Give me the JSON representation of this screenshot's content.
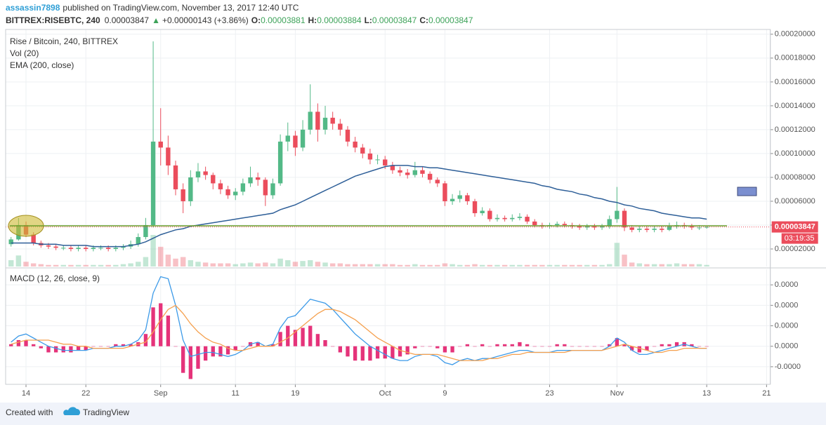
{
  "header": {
    "user": "assassin7898",
    "published": "published on TradingView.com, November 13, 2017 12:40 UTC",
    "symbol": "BITTREX:RISEBTC, 240",
    "price": "0.00003847",
    "arrow": "▲",
    "change": "+0.00000143 (+3.86%)",
    "o_label": "O:",
    "o": "0.00003881",
    "h_label": "H:",
    "h": "0.00003884",
    "l_label": "L:",
    "l": "0.00003847",
    "c_label": "C:",
    "c": "0.00003847"
  },
  "footer": {
    "created": "Created with",
    "brand": "TradingView"
  },
  "chart_data": {
    "type": "candlestick",
    "title": "Rise / Bitcoin, 240, BITTREX",
    "categories": [
      null,
      null,
      "14",
      null,
      null,
      null,
      null,
      null,
      null,
      null,
      "22",
      null,
      null,
      null,
      null,
      null,
      null,
      null,
      null,
      null,
      "Sep",
      null,
      null,
      null,
      null,
      null,
      null,
      null,
      null,
      null,
      "11",
      null,
      null,
      null,
      null,
      null,
      null,
      null,
      "19",
      null,
      null,
      null,
      null,
      null,
      null,
      null,
      null,
      null,
      null,
      null,
      "Oct",
      null,
      null,
      null,
      null,
      null,
      null,
      null,
      "9",
      null,
      null,
      null,
      null,
      null,
      null,
      null,
      null,
      null,
      null,
      null,
      null,
      null,
      "23",
      null,
      null,
      null,
      null,
      null,
      null,
      null,
      null,
      "Nov",
      null,
      null,
      null,
      null,
      null,
      null,
      null,
      null,
      null,
      null,
      null,
      "13",
      null,
      null,
      null,
      null,
      null,
      null,
      null,
      "21"
    ],
    "open": [
      2.4e-05,
      2.8e-05,
      4e-05,
      3.2e-05,
      2.5e-05,
      2.3e-05,
      2.2e-05,
      2.1e-05,
      2.1e-05,
      2e-05,
      2.1e-05,
      2e-05,
      2.1e-05,
      2.1e-05,
      2e-05,
      2.1e-05,
      2.2e-05,
      2.4e-05,
      3e-05,
      4e-05,
      0.00011,
      0.000105,
      9e-05,
      7e-05,
      6e-05,
      8e-05,
      8.5e-05,
      8.2e-05,
      7.5e-05,
      7e-05,
      6.5e-05,
      6.8e-05,
      7.5e-05,
      8e-05,
      7.8e-05,
      6.5e-05,
      7.5e-05,
      0.00011,
      0.000115,
      0.000105,
      0.00012,
      0.000135,
      0.00012,
      0.00013,
      0.000125,
      0.00012,
      0.00011,
      0.000105,
      0.0001,
      9.5e-05,
      9.5e-05,
      9e-05,
      8.6e-05,
      8.4e-05,
      8.2e-05,
      8.6e-05,
      8.3e-05,
      7.8e-05,
      7.5e-05,
      6e-05,
      6.2e-05,
      6.5e-05,
      6e-05,
      5e-05,
      5.2e-05,
      4.5e-05,
      4.6e-05,
      4.5e-05,
      4.6e-05,
      4.7e-05,
      4.3e-05,
      4e-05,
      3.9e-05,
      4e-05,
      4.1e-05,
      4e-05,
      3.9e-05,
      3.8e-05,
      3.9e-05,
      3.8e-05,
      3.9e-05,
      4.5e-05,
      5.2e-05,
      3.8e-05,
      3.6e-05,
      3.7e-05,
      3.6e-05,
      3.7e-05,
      3.6e-05,
      3.9e-05,
      4e-05,
      3.9e-05,
      3.8e-05,
      3.8e-05,
      null,
      null,
      null,
      null,
      null,
      null,
      null,
      null
    ],
    "high": [
      3e-05,
      4.6e-05,
      4.3e-05,
      3.4e-05,
      2.7e-05,
      2.5e-05,
      2.4e-05,
      2.3e-05,
      2.3e-05,
      2.3e-05,
      2.3e-05,
      2.3e-05,
      2.3e-05,
      2.3e-05,
      2.3e-05,
      2.4e-05,
      2.7e-05,
      3.3e-05,
      4.6e-05,
      0.000194,
      0.000138,
      0.000115,
      9.4e-05,
      7.5e-05,
      8.6e-05,
      9.2e-05,
      8.9e-05,
      8.4e-05,
      7.8e-05,
      7.3e-05,
      7.1e-05,
      7.9e-05,
      8.9e-05,
      8.4e-05,
      8e-05,
      7.9e-05,
      0.000116,
      0.000126,
      0.000119,
      0.000128,
      0.000158,
      0.000142,
      0.00014,
      0.000135,
      0.000129,
      0.000123,
      0.000114,
      0.000108,
      0.000104,
      9.9e-05,
      9.8e-05,
      9.3e-05,
      8.9e-05,
      8.7e-05,
      9.3e-05,
      8.9e-05,
      8.5e-05,
      8e-05,
      7.7e-05,
      6.6e-05,
      6.9e-05,
      6.7e-05,
      6.2e-05,
      5.5e-05,
      5.4e-05,
      4.9e-05,
      4.8e-05,
      4.9e-05,
      5e-05,
      4.9e-05,
      4.5e-05,
      4.2e-05,
      4.2e-05,
      4.3e-05,
      4.3e-05,
      4.2e-05,
      4.1e-05,
      4.1e-05,
      4.1e-05,
      4.1e-05,
      4.8e-05,
      7.2e-05,
      5.4e-05,
      4e-05,
      3.9e-05,
      3.9e-05,
      3.9e-05,
      3.9e-05,
      4.2e-05,
      4.3e-05,
      4.2e-05,
      4.1e-05,
      4e-05,
      3.9e-05,
      null,
      null,
      null,
      null,
      null,
      null,
      null,
      null
    ],
    "low": [
      2.2e-05,
      2.7e-05,
      3e-05,
      2.3e-05,
      2.1e-05,
      2e-05,
      1.9e-05,
      1.9e-05,
      1.8e-05,
      1.8e-05,
      1.8e-05,
      1.8e-05,
      1.9e-05,
      1.8e-05,
      1.8e-05,
      1.9e-05,
      2e-05,
      2.2e-05,
      2.8e-05,
      3.8e-05,
      9e-05,
      8.2e-05,
      6.5e-05,
      5e-05,
      5.6e-05,
      7.6e-05,
      7.8e-05,
      7e-05,
      6.6e-05,
      6.2e-05,
      6.1e-05,
      6.5e-05,
      7.2e-05,
      7.3e-05,
      5.6e-05,
      6.2e-05,
      7.3e-05,
      0.000102,
      9.8e-05,
      0.000102,
      0.000116,
      0.00011,
      0.000116,
      0.00012,
      0.000115,
      0.000106,
      0.000101,
      9.6e-05,
      9.1e-05,
      9.1e-05,
      8.7e-05,
      8.3e-05,
      8.1e-05,
      7.9e-05,
      8e-05,
      8e-05,
      7.5e-05,
      7.2e-05,
      5.6e-05,
      5.7e-05,
      5.9e-05,
      5.7e-05,
      4.7e-05,
      4.8e-05,
      4.3e-05,
      4.3e-05,
      4.3e-05,
      4.3e-05,
      4.4e-05,
      4.1e-05,
      3.8e-05,
      3.7e-05,
      3.7e-05,
      3.8e-05,
      3.8e-05,
      3.7e-05,
      3.6e-05,
      3.6e-05,
      3.6e-05,
      3.6e-05,
      3.7e-05,
      4.2e-05,
      3.5e-05,
      3.4e-05,
      3.4e-05,
      3.4e-05,
      3.4e-05,
      3.4e-05,
      3.5e-05,
      3.7e-05,
      3.7e-05,
      3.6e-05,
      3.6e-05,
      3.7e-05,
      null,
      null,
      null,
      null,
      null,
      null,
      null,
      null
    ],
    "close": [
      2.8e-05,
      4e-05,
      3.2e-05,
      2.5e-05,
      2.3e-05,
      2.2e-05,
      2.1e-05,
      2.1e-05,
      2e-05,
      2.1e-05,
      2e-05,
      2.1e-05,
      2.1e-05,
      2e-05,
      2.1e-05,
      2.2e-05,
      2.4e-05,
      3e-05,
      4e-05,
      0.00011,
      0.000105,
      9e-05,
      7e-05,
      6e-05,
      8e-05,
      8.5e-05,
      8.2e-05,
      7.5e-05,
      7e-05,
      6.5e-05,
      6.8e-05,
      7.5e-05,
      8e-05,
      7.8e-05,
      6.5e-05,
      7.5e-05,
      0.00011,
      0.000115,
      0.000105,
      0.00012,
      0.000135,
      0.00012,
      0.00013,
      0.000125,
      0.00012,
      0.00011,
      0.000105,
      0.0001,
      9.5e-05,
      9.5e-05,
      9e-05,
      8.6e-05,
      8.4e-05,
      8.2e-05,
      8.6e-05,
      8.3e-05,
      7.8e-05,
      7.5e-05,
      6e-05,
      6.2e-05,
      6.5e-05,
      6e-05,
      5e-05,
      5.2e-05,
      4.5e-05,
      4.6e-05,
      4.5e-05,
      4.6e-05,
      4.7e-05,
      4.3e-05,
      4e-05,
      3.9e-05,
      4e-05,
      4.1e-05,
      4e-05,
      3.9e-05,
      3.8e-05,
      3.9e-05,
      3.8e-05,
      3.9e-05,
      4.5e-05,
      5.2e-05,
      3.8e-05,
      3.6e-05,
      3.7e-05,
      3.6e-05,
      3.7e-05,
      3.6e-05,
      3.9e-05,
      4e-05,
      3.9e-05,
      3.8e-05,
      3.8e-05,
      3.847e-05,
      null,
      null,
      null,
      null,
      null,
      null,
      null,
      null
    ],
    "up_color": "#53b987",
    "down_color": "#eb4d5c",
    "ylim": [
      5.3e-06,
      0.000204
    ],
    "yticks": [
      {
        "value": 2e-05,
        "label": "0.00002000"
      },
      {
        "value": 4e-05,
        "label": "0.00004000"
      },
      {
        "value": 6e-05,
        "label": "0.00006000"
      },
      {
        "value": 8e-05,
        "label": "0.00008000"
      },
      {
        "value": 0.0001,
        "label": "0.00010000"
      },
      {
        "value": 0.00012,
        "label": "0.00012000"
      },
      {
        "value": 0.00014,
        "label": "0.00014000"
      },
      {
        "value": 0.00016,
        "label": "0.00016000"
      },
      {
        "value": 0.00018,
        "label": "0.00018000"
      },
      {
        "value": 0.0002,
        "label": "0.00020000"
      }
    ],
    "grid": true,
    "last_price": {
      "value": 3.847e-05,
      "label": "0.00003847"
    },
    "countdown": "03:19:35",
    "last_color": "#eb4d5c",
    "volume": {
      "name": "Vol (20)",
      "values": [
        8,
        14,
        6,
        4,
        3,
        2,
        2,
        2,
        2,
        2,
        2,
        2,
        2,
        2,
        2,
        3,
        4,
        6,
        12,
        40,
        25,
        15,
        10,
        12,
        8,
        6,
        5,
        4,
        4,
        4,
        3,
        4,
        5,
        4,
        5,
        4,
        10,
        8,
        6,
        7,
        8,
        6,
        5,
        4,
        4,
        3,
        3,
        3,
        3,
        3,
        3,
        3,
        2,
        2,
        3,
        2,
        2,
        2,
        4,
        3,
        2,
        2,
        3,
        2,
        2,
        2,
        2,
        2,
        2,
        2,
        2,
        2,
        2,
        2,
        2,
        2,
        2,
        2,
        2,
        2,
        3,
        30,
        15,
        5,
        4,
        3,
        3,
        3,
        3,
        4,
        3,
        3,
        3,
        2,
        null,
        null,
        null,
        null,
        null,
        null,
        null,
        null
      ]
    },
    "ema": {
      "name": "EMA (200, close)",
      "color": "#2e5f98",
      "values": [
        2.5e-05,
        2.5e-05,
        2.5e-05,
        2.5e-05,
        2.4e-05,
        2.4e-05,
        2.4e-05,
        2.3e-05,
        2.3e-05,
        2.3e-05,
        2.3e-05,
        2.2e-05,
        2.2e-05,
        2.2e-05,
        2.2e-05,
        2.2e-05,
        2.3e-05,
        2.4e-05,
        2.6e-05,
        2.9e-05,
        3.2e-05,
        3.4e-05,
        3.6e-05,
        3.7e-05,
        3.9e-05,
        4e-05,
        4.1e-05,
        4.2e-05,
        4.3e-05,
        4.4e-05,
        4.5e-05,
        4.6e-05,
        4.7e-05,
        4.8e-05,
        4.9e-05,
        5e-05,
        5.3e-05,
        5.5e-05,
        5.7e-05,
        6e-05,
        6.3e-05,
        6.6e-05,
        6.9e-05,
        7.2e-05,
        7.5e-05,
        7.8e-05,
        8.1e-05,
        8.3e-05,
        8.5e-05,
        8.7e-05,
        8.9e-05,
        9e-05,
        9e-05,
        9e-05,
        8.9e-05,
        8.9e-05,
        8.8e-05,
        8.8e-05,
        8.7e-05,
        8.6e-05,
        8.5e-05,
        8.4e-05,
        8.3e-05,
        8.2e-05,
        8.1e-05,
        8e-05,
        7.9e-05,
        7.8e-05,
        7.7e-05,
        7.6e-05,
        7.5e-05,
        7.3e-05,
        7.2e-05,
        7e-05,
        6.9e-05,
        6.8e-05,
        6.6e-05,
        6.5e-05,
        6.3e-05,
        6.2e-05,
        6e-05,
        5.9e-05,
        5.7e-05,
        5.6e-05,
        5.4e-05,
        5.3e-05,
        5.2e-05,
        5e-05,
        4.9e-05,
        4.8e-05,
        4.7e-05,
        4.6e-05,
        4.6e-05,
        4.5e-05,
        null,
        null,
        null,
        null,
        null,
        null,
        null,
        null
      ]
    },
    "macd": {
      "title": "MACD (12, 26, close, 9)",
      "ylim": [
        -1.86e-05,
        3.76e-05
      ],
      "yticks": [
        {
          "value": 3e-05,
          "label": "0.0000"
        },
        {
          "value": 2e-05,
          "label": "0.0000"
        },
        {
          "value": 1e-05,
          "label": "0.0000"
        },
        {
          "value": 0,
          "label": "0.0000"
        },
        {
          "value": -1e-05,
          "label": "-0.0000"
        }
      ],
      "macd": {
        "color": "#3c9ae8",
        "values": [
          2e-06,
          5e-06,
          6e-06,
          4e-06,
          2e-06,
          0,
          -1e-06,
          -2e-06,
          -2e-06,
          -2e-06,
          -2e-06,
          -1e-06,
          -1e-06,
          -1e-06,
          0,
          0,
          1e-06,
          3e-06,
          8e-06,
          2.6e-05,
          3.4e-05,
          3.3e-05,
          2e-05,
          3e-06,
          -5e-06,
          -4e-06,
          -3e-06,
          -3e-06,
          -4e-06,
          -5e-06,
          -4e-06,
          -2e-06,
          1e-06,
          2e-06,
          0,
          1e-06,
          9e-06,
          1.4e-05,
          1.5e-05,
          1.9e-05,
          2.3e-05,
          2.2e-05,
          2.1e-05,
          1.8e-05,
          1.4e-05,
          1e-05,
          6e-06,
          3e-06,
          0,
          -2e-06,
          -4e-06,
          -6e-06,
          -7e-06,
          -7e-06,
          -5e-06,
          -4e-06,
          -4e-06,
          -5e-06,
          -8e-06,
          -9e-06,
          -7e-06,
          -6e-06,
          -7e-06,
          -6e-06,
          -6e-06,
          -5e-06,
          -4e-06,
          -3e-06,
          -2e-06,
          -2e-06,
          -3e-06,
          -3e-06,
          -3e-06,
          -2e-06,
          -2e-06,
          -2e-06,
          -2e-06,
          -2e-06,
          -2e-06,
          -2e-06,
          0,
          4e-06,
          2e-06,
          -2e-06,
          -4e-06,
          -4e-06,
          -3e-06,
          -2e-06,
          -1e-06,
          0,
          1e-06,
          0,
          -1e-06,
          -1e-06,
          null,
          null,
          null,
          null,
          null,
          null,
          null,
          null
        ]
      },
      "signal": {
        "color": "#f5a04e",
        "values": [
          1e-06,
          2e-06,
          3e-06,
          3e-06,
          3e-06,
          3e-06,
          2e-06,
          1e-06,
          1e-06,
          0,
          0,
          -1e-06,
          -1e-06,
          -1e-06,
          -1e-06,
          -1e-06,
          0,
          1e-06,
          2e-06,
          7e-06,
          1.3e-05,
          1.8e-05,
          2e-05,
          1.6e-05,
          1.1e-05,
          7e-06,
          4e-06,
          2e-06,
          1e-06,
          -1e-06,
          -2e-06,
          -2e-06,
          -1e-06,
          0,
          0,
          0,
          2e-06,
          4e-06,
          7e-06,
          1e-05,
          1.3e-05,
          1.6e-05,
          1.8e-05,
          1.8e-05,
          1.7e-05,
          1.5e-05,
          1.3e-05,
          1e-05,
          7e-06,
          4e-06,
          2e-06,
          0,
          -2e-06,
          -3e-06,
          -4e-06,
          -4e-06,
          -4e-06,
          -4e-06,
          -5e-06,
          -6e-06,
          -7e-06,
          -7e-06,
          -7e-06,
          -7e-06,
          -6e-06,
          -6e-06,
          -5e-06,
          -4e-06,
          -4e-06,
          -3e-06,
          -3e-06,
          -3e-06,
          -3e-06,
          -3e-06,
          -3e-06,
          -2e-06,
          -2e-06,
          -2e-06,
          -2e-06,
          -2e-06,
          -1e-06,
          0,
          1e-06,
          0,
          -1e-06,
          -2e-06,
          -3e-06,
          -3e-06,
          -2e-06,
          -2e-06,
          -1e-06,
          -1e-06,
          -1e-06,
          -1e-06,
          null,
          null,
          null,
          null,
          null,
          null,
          null,
          null
        ]
      },
      "histogram": {
        "color": "#e5337a",
        "values": [
          1e-06,
          3e-06,
          3e-06,
          1e-06,
          -1e-06,
          -3e-06,
          -3e-06,
          -3e-06,
          -3e-06,
          -2e-06,
          -2e-06,
          0,
          0,
          0,
          1e-06,
          1e-06,
          1e-06,
          2e-06,
          6e-06,
          1.9e-05,
          2.1e-05,
          1.5e-05,
          0,
          -1.3e-05,
          -1.6e-05,
          -1.1e-05,
          -7e-06,
          -5e-06,
          -5e-06,
          -4e-06,
          -2e-06,
          0,
          2e-06,
          2e-06,
          0,
          1e-06,
          7e-06,
          1e-05,
          8e-06,
          9e-06,
          1e-05,
          6e-06,
          3e-06,
          0,
          -3e-06,
          -5e-06,
          -7e-06,
          -7e-06,
          -7e-06,
          -6e-06,
          -6e-06,
          -6e-06,
          -5e-06,
          -4e-06,
          -1e-06,
          0,
          0,
          -1e-06,
          -3e-06,
          -3e-06,
          0,
          1e-06,
          0,
          1e-06,
          0,
          1e-06,
          1e-06,
          1e-06,
          2e-06,
          1e-06,
          0,
          0,
          0,
          1e-06,
          1e-06,
          0,
          0,
          0,
          0,
          0,
          1e-06,
          4e-06,
          1e-06,
          -2e-06,
          -3e-06,
          -2e-06,
          0,
          1e-06,
          1e-06,
          2e-06,
          2e-06,
          1e-06,
          0,
          0,
          null,
          null,
          null,
          null,
          null,
          null,
          null,
          null
        ]
      }
    }
  }
}
